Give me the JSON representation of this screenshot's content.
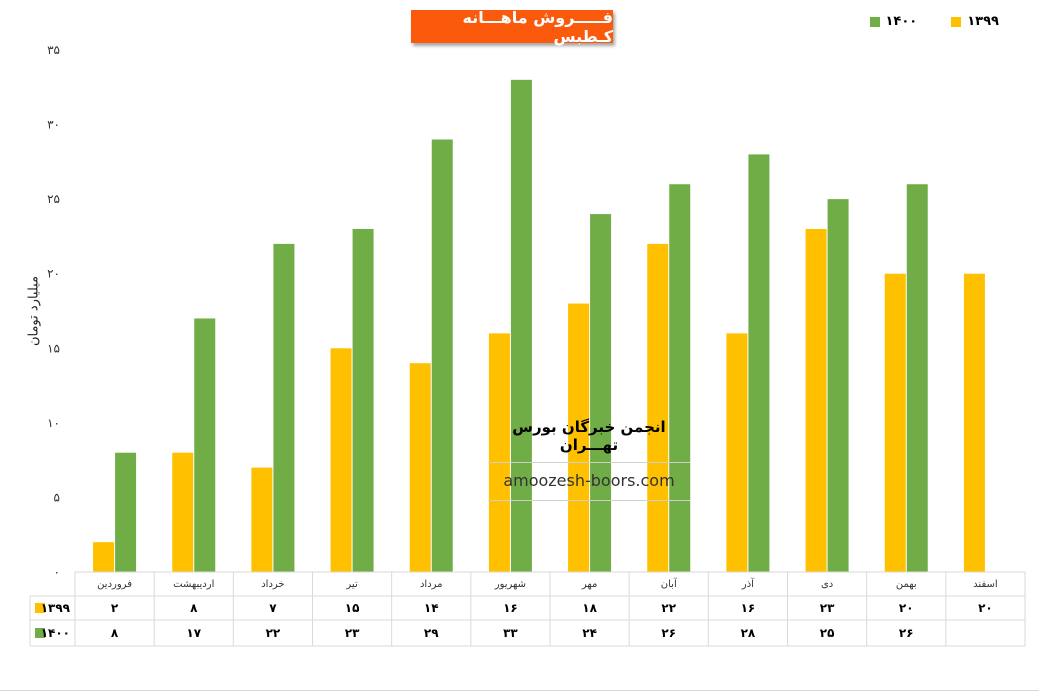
{
  "chart_data": {
    "type": "bar",
    "title": "فـــــروش ماهـــانه کـطبس",
    "ylabel": "میلیارد تومان",
    "ylim": [
      0,
      35
    ],
    "yticks": [
      "۰",
      "۵",
      "۱۰",
      "۱۵",
      "۲۰",
      "۲۵",
      "۳۰",
      "۳۵"
    ],
    "categories": [
      "فروردین",
      "اردیبهشت",
      "خرداد",
      "تیر",
      "مرداد",
      "شهریور",
      "مهر",
      "آبان",
      "آذر",
      "دی",
      "بهمن",
      "اسفند"
    ],
    "series": [
      {
        "name": "۱۳۹۹",
        "color": "#ffc000",
        "values": [
          2,
          8,
          7,
          15,
          14,
          16,
          18,
          22,
          16,
          23,
          20,
          20
        ],
        "labels": [
          "۲",
          "۸",
          "۷",
          "۱۵",
          "۱۴",
          "۱۶",
          "۱۸",
          "۲۲",
          "۱۶",
          "۲۳",
          "۲۰",
          "۲۰"
        ]
      },
      {
        "name": "۱۴۰۰",
        "color": "#70ad47",
        "values": [
          8,
          17,
          22,
          23,
          29,
          33,
          24,
          26,
          28,
          25,
          26,
          null
        ],
        "labels": [
          "۸",
          "۱۷",
          "۲۲",
          "۲۳",
          "۲۹",
          "۳۳",
          "۲۴",
          "۲۶",
          "۲۸",
          "۲۵",
          "۲۶",
          ""
        ]
      }
    ],
    "grid": false,
    "legend": "top-right",
    "data_table": true
  },
  "watermark": {
    "org": "انجمن خبرگان بورس تهـــران",
    "site": "amoozesh-boors.com"
  }
}
